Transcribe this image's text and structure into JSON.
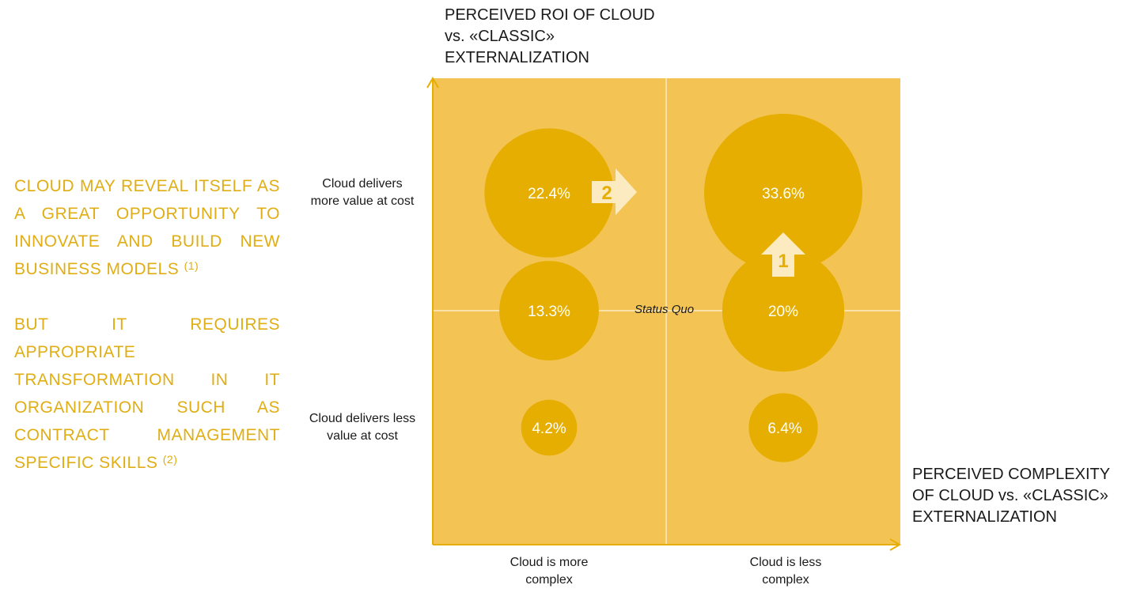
{
  "side_text": {
    "para1": {
      "part1": "Cloud may reveal itself as a great opportunity to innovate and build new business models",
      "ref": "(1)"
    },
    "para2": {
      "part1": "But it requires appropriate transformation in IT organization such as contract management specific skills",
      "ref": "(2)"
    }
  },
  "chart_data": {
    "type": "bubble-quadrant",
    "y_title": [
      "PERCEIVED ROI OF CLOUD",
      "vs. «CLASSIC»",
      "EXTERNALIZATION"
    ],
    "x_title": [
      "PERCEIVED COMPLEXITY",
      "OF CLOUD vs. «CLASSIC»",
      "EXTERNALIZATION"
    ],
    "row_labels": [
      {
        "id": "top",
        "lines": [
          "Cloud delivers",
          "more value at cost"
        ]
      },
      {
        "id": "bottom",
        "lines": [
          "Cloud delivers less",
          "value at cost"
        ]
      }
    ],
    "col_labels": [
      {
        "id": "left",
        "lines": [
          "Cloud is more",
          "complex"
        ]
      },
      {
        "id": "right",
        "lines": [
          "Cloud is less",
          "complex"
        ]
      }
    ],
    "center_label": "Status Quo",
    "bubbles": [
      {
        "label": "22.4%",
        "value": 22.4,
        "col": "more complex",
        "row": "more value"
      },
      {
        "label": "33.6%",
        "value": 33.6,
        "col": "less complex",
        "row": "more value"
      },
      {
        "label": "13.3%",
        "value": 13.3,
        "col": "more complex",
        "row": "status quo"
      },
      {
        "label": "20%",
        "value": 20,
        "col": "less complex",
        "row": "status quo"
      },
      {
        "label": "4.2%",
        "value": 4.2,
        "col": "more complex",
        "row": "less value"
      },
      {
        "label": "6.4%",
        "value": 6.4,
        "col": "less complex",
        "row": "less value"
      }
    ],
    "arrows": [
      {
        "label": "2",
        "direction": "right"
      },
      {
        "label": "1",
        "direction": "up"
      }
    ],
    "colors": {
      "quadrant": "#F3C453",
      "bubble": "#E5AE00",
      "axis": "#E5AE00",
      "arrow_fill": "#FCEBC0",
      "arrow_text": "#E5AE00",
      "text_accent": "#E0AE14"
    }
  }
}
